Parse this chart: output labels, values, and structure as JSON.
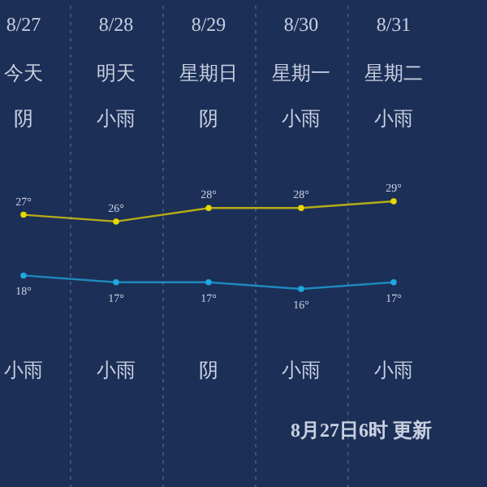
{
  "chart_data": {
    "type": "line",
    "categories": [
      "8/27",
      "8/28",
      "8/29",
      "8/30",
      "8/31"
    ],
    "series": [
      {
        "color": "#e8d800",
        "values": [
          27,
          26,
          28,
          28,
          29
        ],
        "value_labels": [
          "27°",
          "26°",
          "28°",
          "28°",
          "29°"
        ]
      },
      {
        "color": "#1fa8e0",
        "values": [
          18,
          17,
          17,
          16,
          17
        ],
        "value_labels": [
          "18°",
          "17°",
          "17°",
          "16°",
          "17°"
        ]
      }
    ],
    "grid": "x",
    "marker": "circle",
    "annotations": [
      "今天",
      "明天",
      "星期日",
      "星期一",
      "星期二",
      "阴",
      "小雨",
      "阴",
      "小雨",
      "小雨",
      "小雨",
      "小雨",
      "阴",
      "小雨",
      "小雨",
      "8月27日6时 更新"
    ]
  }
}
